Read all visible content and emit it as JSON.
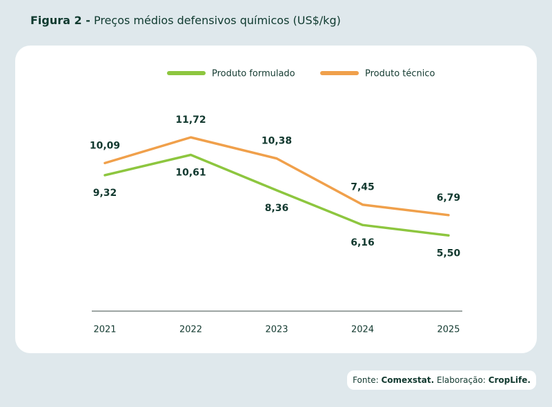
{
  "chart_data": {
    "type": "line",
    "figure_label": "Figura 2 -",
    "title": "Preços médios defensivos químicos (US$/kg)",
    "categories": [
      "2021",
      "2022",
      "2023",
      "2024",
      "2025"
    ],
    "series": [
      {
        "name": "Produto formulado",
        "color": "#8dc63f",
        "values": [
          9.32,
          10.61,
          8.36,
          6.16,
          5.5
        ],
        "value_labels": [
          "9,32",
          "10,61",
          "8,36",
          "6,16",
          "5,50"
        ],
        "label_position": "below"
      },
      {
        "name": "Produto técnico",
        "color": "#f0a04b",
        "values": [
          10.09,
          11.72,
          10.38,
          7.45,
          6.79
        ],
        "value_labels": [
          "10,09",
          "11,72",
          "10,38",
          "7,45",
          "6,79"
        ],
        "label_position": "above"
      }
    ],
    "ylim": [
      0.7,
      14
    ],
    "source_label": "Fonte:",
    "source": "Comexstat.",
    "credit_label": "Elaboração:",
    "credit": "CropLife."
  }
}
